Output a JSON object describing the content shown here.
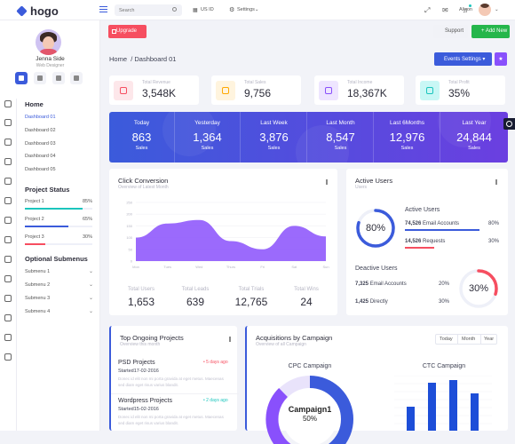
{
  "app": {
    "name": "hogo"
  },
  "topbar": {
    "search_placeholder": "Search",
    "language": "US ID",
    "settings_label": "Settings",
    "user_name": "Alison"
  },
  "profile": {
    "name": "Jenna Side",
    "role": "Web Designer"
  },
  "nav": {
    "home_title": "Home",
    "home_items": [
      "Dashboard 01",
      "Dashboard 02",
      "Dashboard 03",
      "Dashboard 04",
      "Dashboard 05"
    ],
    "project_status_title": "Project Status",
    "projects": [
      {
        "label": "Project 1",
        "pct_label": "85%",
        "value": 0.85,
        "color": "#1bc5bd"
      },
      {
        "label": "Project 2",
        "pct_label": "65%",
        "value": 0.65,
        "color": "#3b5bdb"
      },
      {
        "label": "Project 3",
        "pct_label": "30%",
        "value": 0.3,
        "color": "#f64e60"
      }
    ],
    "optional_title": "Optional Submenus",
    "submenus": [
      "Submenu 1",
      "Submenu 2",
      "Submenu 3",
      "Submenu 4"
    ]
  },
  "actions": {
    "upgrade": "Upgrade",
    "support": "Support",
    "add_new": "+ Add New"
  },
  "breadcrumb": {
    "root": "Home",
    "current": "/ Dashboard 01"
  },
  "events_button": "Events Settings ▾",
  "stats": [
    {
      "label": "Total Revenue",
      "value": "3,548K",
      "color": "#f64e60",
      "bg": "#fde7ea"
    },
    {
      "label": "Total Sales",
      "value": "9,756",
      "color": "#ffa800",
      "bg": "#fff4de"
    },
    {
      "label": "Total Income",
      "value": "18,367K",
      "color": "#8950fc",
      "bg": "#eee5ff"
    },
    {
      "label": "Total Profit",
      "value": "35%",
      "color": "#1bc5bd",
      "bg": "#c9f7f5"
    }
  ],
  "periods": [
    {
      "label": "Today",
      "value": "863",
      "unit": "Sales"
    },
    {
      "label": "Yesterday",
      "value": "1,364",
      "unit": "Sales"
    },
    {
      "label": "Last Week",
      "value": "3,876",
      "unit": "Sales"
    },
    {
      "label": "Last Month",
      "value": "8,547",
      "unit": "Sales"
    },
    {
      "label": "Last 6Months",
      "value": "12,976",
      "unit": "Sales"
    },
    {
      "label": "Last Year",
      "value": "24,844",
      "unit": "Sales"
    }
  ],
  "click_conversion": {
    "title": "Click Conversion",
    "subtitle": "Overview of Latest Month",
    "metrics": [
      {
        "label": "Total Users",
        "value": "1,653"
      },
      {
        "label": "Total Leads",
        "value": "639"
      },
      {
        "label": "Total Trials",
        "value": "12,765"
      },
      {
        "label": "Total Wins",
        "value": "24"
      }
    ]
  },
  "chart_data": {
    "type": "area",
    "x": [
      "Mon",
      "Tues",
      "Wed",
      "Thurs",
      "Fri",
      "Sat",
      "Sun"
    ],
    "ylim": [
      0,
      250
    ],
    "yticks": [
      0,
      50,
      100,
      150,
      200,
      250
    ],
    "series": [
      {
        "values": [
          100,
          160,
          175,
          85,
          50,
          150,
          105
        ]
      }
    ],
    "color": "#8950fc"
  },
  "active_users": {
    "title": "Active Users",
    "subtitle": "Users",
    "gauge_label": "80%",
    "gauge_value": 0.8,
    "section_title": "Active Users",
    "rows": [
      {
        "label": "Email Accounts",
        "count": "74,526",
        "pct": "80%",
        "color": "#3b5bdb"
      },
      {
        "label": "Requests",
        "count": "14,526",
        "pct": "30%",
        "color": "#f64e60"
      }
    ],
    "inactive_title": "Deactive Users",
    "inactive_rows": [
      {
        "label": "Email Accounts",
        "count": "7,325",
        "pct": "20%"
      },
      {
        "label": "Directly",
        "count": "1,425",
        "pct": "30%"
      }
    ],
    "gauge2_label": "30%",
    "gauge2_value": 0.3
  },
  "top_projects": {
    "title": "Top Ongoing Projects",
    "subtitle": "Overview this month",
    "items": [
      {
        "name": "PSD Projects",
        "age": "• 5 days ago",
        "age_color": "#f64e60",
        "date": "Started17-02-2016",
        "desc": "Donec id elit non mi porta gravida at eget metus. Maecenas sed diam eget risus varius blandit."
      },
      {
        "name": "Wordpress Projects",
        "age": "• 2 days ago",
        "age_color": "#1bc5bd",
        "date": "Started15-02-2016",
        "desc": "Donec id elit non mi porta gravida at eget metus. Maecenas sed diam eget risus varius blandit."
      }
    ]
  },
  "acquisitions": {
    "title": "Acquisitions by Campaign",
    "subtitle": "Overview of all Campaign",
    "tabs": [
      "Today",
      "Month",
      "Year"
    ],
    "cpc_title": "CPC Campaign",
    "ctc_title": "CTC Campaign",
    "donut_label": "Campaign1",
    "donut_pct": "50%",
    "ctc_bars": [
      0.45,
      0.9,
      0.95,
      0.7
    ]
  }
}
